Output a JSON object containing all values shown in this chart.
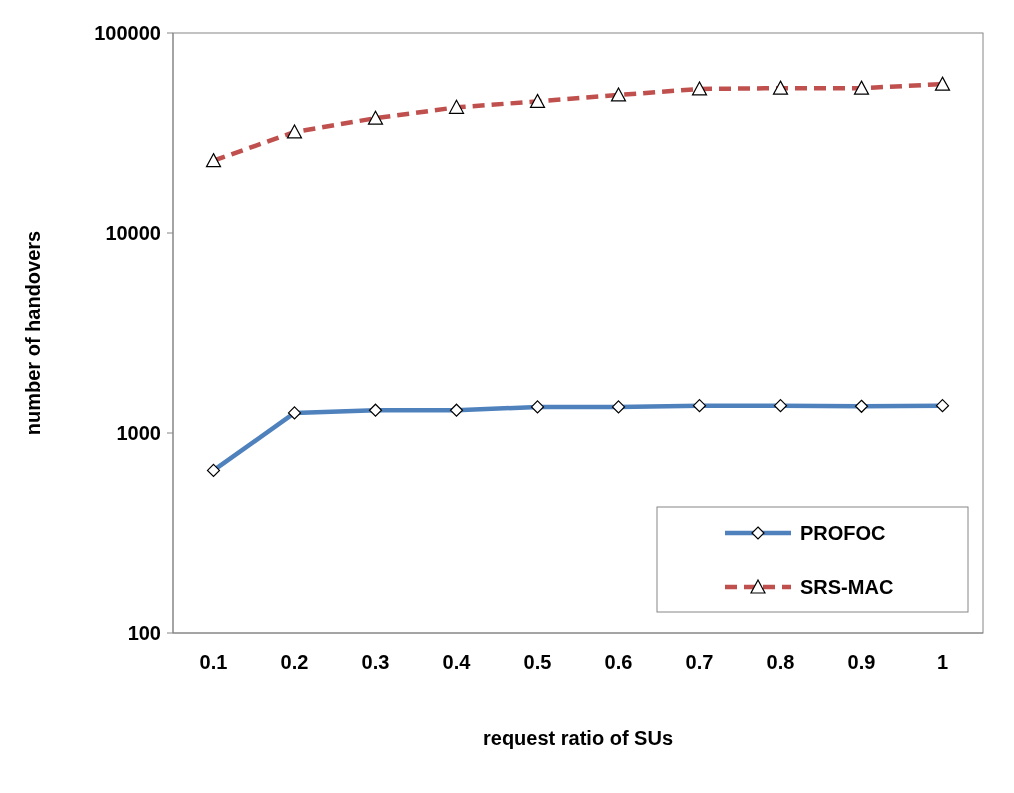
{
  "chart_data": {
    "type": "line",
    "xlabel": "request ratio of SUs",
    "ylabel": "number of handovers",
    "categories": [
      "0.1",
      "0.2",
      "0.3",
      "0.4",
      "0.5",
      "0.6",
      "0.7",
      "0.8",
      "0.9",
      "1"
    ],
    "log": "y",
    "ylim": [
      100,
      100000
    ],
    "yticks": [
      100,
      1000,
      10000,
      100000
    ],
    "grid": false,
    "legend": "bottom right",
    "series": [
      {
        "name": "PROFOC",
        "color": "#4f81bd",
        "marker": "diamond",
        "line_style": "solid",
        "values": [
          650,
          1260,
          1300,
          1300,
          1350,
          1350,
          1370,
          1370,
          1360,
          1370
        ]
      },
      {
        "name": "SRS-MAC",
        "color": "#c0504d",
        "marker": "triangle",
        "line_style": "dashed",
        "values": [
          23000,
          32000,
          37500,
          42500,
          45500,
          49000,
          52500,
          53000,
          53000,
          55500
        ]
      }
    ]
  }
}
